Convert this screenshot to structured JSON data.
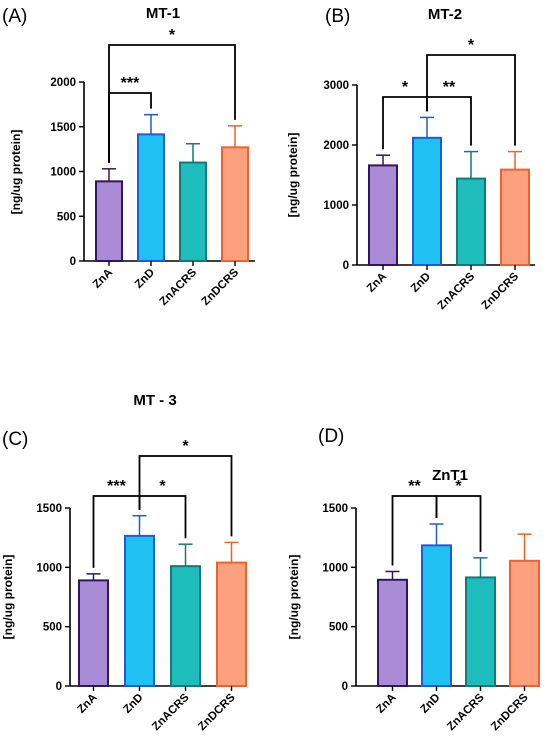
{
  "colors": {
    "ZnA": {
      "fill": "#A98BD6",
      "stroke": "#2E1763"
    },
    "ZnD": {
      "fill": "#1FC0F2",
      "stroke": "#1E5BD6"
    },
    "ZnACRS": {
      "fill": "#1EBDBC",
      "stroke": "#14787E"
    },
    "ZnDCRS": {
      "fill": "#FCA07E",
      "stroke": "#F0622D"
    },
    "axis": "#000000"
  },
  "chart_data": [
    {
      "type": "bar",
      "panel_label": "(A)",
      "title": "MT-1",
      "ylabel": "[ng/ug protein]",
      "categories": [
        "ZnA",
        "ZnD",
        "ZnACRS",
        "ZnDCRS"
      ],
      "values": [
        890,
        1415,
        1100,
        1270
      ],
      "errors": [
        140,
        220,
        210,
        240
      ],
      "ylim": [
        0,
        2000
      ],
      "yticks": [
        "0",
        "500",
        "1000",
        "1500",
        "2000"
      ],
      "significance": [
        {
          "from": 0,
          "to": 1,
          "label": "***"
        },
        {
          "from": 0,
          "to": 3,
          "label": "*"
        }
      ]
    },
    {
      "type": "bar",
      "panel_label": "(B)",
      "title": "MT-2",
      "ylabel": "[ng/ug protein]",
      "categories": [
        "ZnA",
        "ZnD",
        "ZnACRS",
        "ZnDCRS"
      ],
      "values": [
        1660,
        2120,
        1440,
        1590
      ],
      "errors": [
        170,
        340,
        450,
        300
      ],
      "ylim": [
        0,
        3000
      ],
      "yticks": [
        "0",
        "1000",
        "2000",
        "3000"
      ],
      "significance": [
        {
          "from": 0,
          "to": 1,
          "label": "*"
        },
        {
          "from": 1,
          "to": 2,
          "label": "**"
        },
        {
          "from": 1,
          "to": 3,
          "label": "*"
        }
      ]
    },
    {
      "type": "bar",
      "panel_label": "(C)",
      "title": "MT - 3",
      "ylabel": "[ng/ug protein]",
      "categories": [
        "ZnA",
        "ZnD",
        "ZnACRS",
        "ZnDCRS"
      ],
      "values": [
        890,
        1265,
        1010,
        1040
      ],
      "errors": [
        55,
        170,
        185,
        170
      ],
      "ylim": [
        0,
        1500
      ],
      "yticks": [
        "0",
        "500",
        "1000",
        "1500"
      ],
      "significance": [
        {
          "from": 0,
          "to": 1,
          "label": "***"
        },
        {
          "from": 1,
          "to": 2,
          "label": "*"
        },
        {
          "from": 1,
          "to": 3,
          "label": "*"
        }
      ]
    },
    {
      "type": "bar",
      "panel_label": "(D)",
      "title": "ZnT1",
      "ylabel": "[ng/ug protein]",
      "categories": [
        "ZnA",
        "ZnD",
        "ZnACRS",
        "ZnDCRS"
      ],
      "values": [
        895,
        1185,
        915,
        1055
      ],
      "errors": [
        70,
        180,
        165,
        225
      ],
      "ylim": [
        0,
        1500
      ],
      "yticks": [
        "0",
        "500",
        "1000",
        "1500"
      ],
      "significance": [
        {
          "from": 0,
          "to": 1,
          "label": "**"
        },
        {
          "from": 1,
          "to": 2,
          "label": "*"
        }
      ]
    }
  ]
}
